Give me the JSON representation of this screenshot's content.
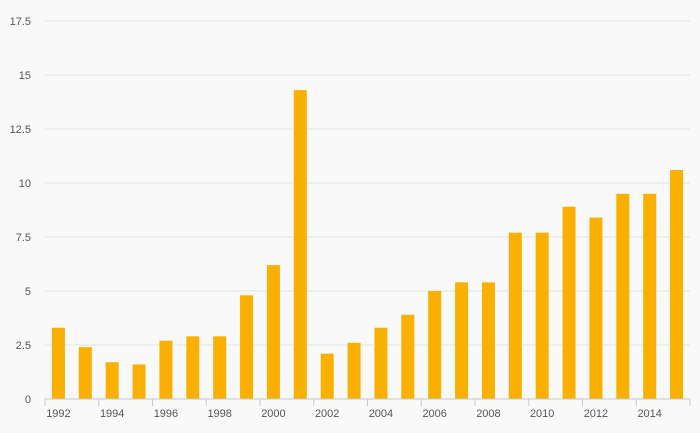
{
  "chart_data": {
    "type": "bar",
    "title": "",
    "xlabel": "",
    "ylabel": "",
    "categories": [
      "1992",
      "1993",
      "1994",
      "1995",
      "1996",
      "1997",
      "1998",
      "1999",
      "2000",
      "2001",
      "2002",
      "2003",
      "2004",
      "2005",
      "2006",
      "2007",
      "2008",
      "2009",
      "2010",
      "2011",
      "2012",
      "2013",
      "2014",
      "2015"
    ],
    "x_tick_labels": [
      "1992",
      "1994",
      "1996",
      "1998",
      "2000",
      "2002",
      "2004",
      "2006",
      "2008",
      "2010",
      "2012",
      "2014"
    ],
    "series": [
      {
        "values": [
          3.3,
          2.4,
          1.7,
          1.6,
          2.7,
          2.9,
          2.9,
          4.8,
          6.2,
          14.3,
          2.1,
          2.6,
          3.3,
          3.9,
          5.0,
          5.4,
          5.4,
          7.7,
          7.7,
          8.9,
          8.4,
          9.5,
          9.5,
          10.6
        ]
      }
    ],
    "y_ticks": [
      "0",
      "2.5",
      "5",
      "7.5",
      "10",
      "12.5",
      "15",
      "17.5"
    ],
    "ylim": [
      0,
      17.5
    ],
    "grid": true,
    "bar_color": "#f9b000",
    "gridline_color": "#e4e4e4",
    "axis_color": "#c8c8c8"
  }
}
